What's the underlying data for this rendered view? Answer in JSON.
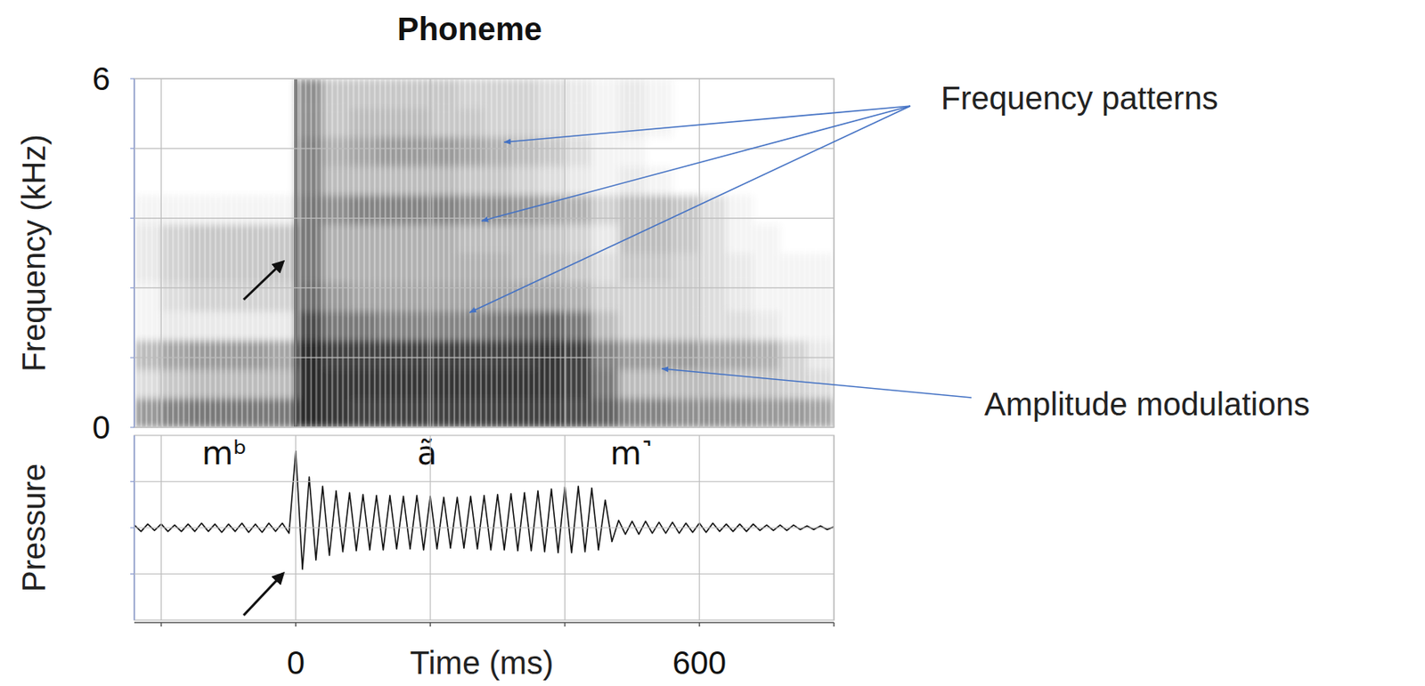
{
  "chart_data": [
    {
      "type": "heatmap",
      "title": "Phoneme",
      "y_label": "Frequency (kHz)",
      "xlim": [
        -240,
        800
      ],
      "ylim": [
        0,
        6
      ],
      "xticks": [
        -200,
        0,
        200,
        400,
        600,
        800
      ],
      "yticks": [
        0,
        {
          "value": 1.2,
          "label": null
        },
        {
          "value": 2.4,
          "label": null
        },
        {
          "value": 3.6,
          "label": null
        },
        {
          "value": 4.8,
          "label": null
        },
        6
      ],
      "grid": true,
      "tick_labels": "y",
      "x_bins": [
        -240,
        -200,
        -160,
        -120,
        -80,
        -40,
        0,
        40,
        80,
        120,
        160,
        200,
        240,
        280,
        320,
        360,
        400,
        440,
        480,
        520,
        560,
        600,
        640,
        680,
        720,
        760,
        800
      ],
      "y_bins": [
        0,
        0.5,
        1,
        1.5,
        2,
        2.5,
        3,
        3.5,
        4,
        4.5,
        5,
        5.5,
        6
      ],
      "zlim": [
        0,
        1
      ],
      "cells": [
        [
          0.45,
          0.55,
          0.6,
          0.6,
          0.6,
          0.6,
          0.95,
          0.9,
          0.85,
          0.85,
          0.85,
          0.85,
          0.85,
          0.85,
          0.85,
          0.85,
          0.8,
          0.7,
          0.55,
          0.55,
          0.5,
          0.5,
          0.5,
          0.45,
          0.45,
          0.4
        ],
        [
          0.15,
          0.25,
          0.3,
          0.3,
          0.3,
          0.3,
          0.95,
          0.9,
          0.9,
          0.9,
          0.9,
          0.9,
          0.9,
          0.9,
          0.9,
          0.9,
          0.85,
          0.6,
          0.3,
          0.3,
          0.3,
          0.3,
          0.25,
          0.25,
          0.2,
          0.15
        ],
        [
          0.3,
          0.4,
          0.45,
          0.45,
          0.45,
          0.4,
          0.95,
          0.85,
          0.85,
          0.85,
          0.85,
          0.85,
          0.85,
          0.85,
          0.85,
          0.9,
          0.85,
          0.55,
          0.45,
          0.45,
          0.45,
          0.4,
          0.4,
          0.35,
          0.2,
          0.1
        ],
        [
          0.05,
          0.1,
          0.1,
          0.1,
          0.1,
          0.1,
          0.8,
          0.6,
          0.6,
          0.55,
          0.55,
          0.55,
          0.55,
          0.6,
          0.65,
          0.7,
          0.6,
          0.3,
          0.2,
          0.2,
          0.2,
          0.15,
          0.15,
          0.1,
          0.05,
          0.05
        ],
        [
          0.05,
          0.15,
          0.2,
          0.2,
          0.2,
          0.2,
          0.65,
          0.45,
          0.4,
          0.4,
          0.4,
          0.4,
          0.4,
          0.4,
          0.4,
          0.4,
          0.35,
          0.2,
          0.2,
          0.2,
          0.2,
          0.15,
          0.1,
          0.05,
          0.05,
          0.05
        ],
        [
          0.1,
          0.2,
          0.25,
          0.25,
          0.25,
          0.25,
          0.6,
          0.35,
          0.35,
          0.35,
          0.35,
          0.35,
          0.35,
          0.35,
          0.3,
          0.3,
          0.25,
          0.15,
          0.25,
          0.25,
          0.2,
          0.15,
          0.1,
          0.05,
          0.05,
          0.05
        ],
        [
          0.1,
          0.2,
          0.25,
          0.25,
          0.25,
          0.25,
          0.6,
          0.35,
          0.35,
          0.35,
          0.35,
          0.35,
          0.3,
          0.3,
          0.3,
          0.25,
          0.2,
          0.1,
          0.3,
          0.3,
          0.25,
          0.15,
          0.05,
          0.05,
          0,
          0
        ],
        [
          0.05,
          0.05,
          0.05,
          0.05,
          0.05,
          0.05,
          0.6,
          0.5,
          0.55,
          0.55,
          0.55,
          0.55,
          0.5,
          0.5,
          0.45,
          0.4,
          0.35,
          0.2,
          0.3,
          0.3,
          0.25,
          0.15,
          0.05,
          0,
          0,
          0
        ],
        [
          0,
          0,
          0,
          0,
          0,
          0,
          0.55,
          0.3,
          0.3,
          0.3,
          0.3,
          0.3,
          0.25,
          0.25,
          0.2,
          0.15,
          0.1,
          0.05,
          0.1,
          0.05,
          0,
          0,
          0,
          0,
          0,
          0
        ],
        [
          0,
          0,
          0,
          0,
          0,
          0,
          0.55,
          0.35,
          0.4,
          0.45,
          0.45,
          0.45,
          0.4,
          0.35,
          0.3,
          0.25,
          0.15,
          0.05,
          0.05,
          0,
          0,
          0,
          0,
          0,
          0,
          0
        ],
        [
          0,
          0,
          0,
          0,
          0,
          0,
          0.5,
          0.25,
          0.3,
          0.3,
          0.3,
          0.25,
          0.25,
          0.2,
          0.2,
          0.15,
          0.1,
          0.05,
          0.1,
          0.05,
          0,
          0,
          0,
          0,
          0,
          0
        ],
        [
          0,
          0,
          0,
          0,
          0,
          0,
          0.5,
          0.25,
          0.25,
          0.25,
          0.25,
          0.25,
          0.2,
          0.2,
          0.2,
          0.15,
          0.1,
          0.05,
          0.1,
          0.05,
          0,
          0,
          0,
          0,
          0,
          0
        ]
      ],
      "release": 0,
      "annotations": [
        {
          "text": "Frequency patterns"
        },
        {
          "text": "Amplitude modulations"
        }
      ]
    },
    {
      "type": "line",
      "y_label": "Pressure",
      "x_label": "Time (ms)",
      "xlim": [
        -240,
        800
      ],
      "ylim": [
        -1,
        1
      ],
      "xticks": [
        {
          "value": -200,
          "label": null
        },
        0,
        {
          "value": 200,
          "label": null
        },
        {
          "value": 400,
          "label": null
        },
        600,
        {
          "value": 800,
          "label": null
        }
      ],
      "yticks": [
        -0.5,
        0,
        0.5
      ],
      "grid": true,
      "tick_labels": "x",
      "color": "#111111",
      "phoneme_labels": [
        "mᵇ",
        "ã",
        "m˺"
      ],
      "x": [
        -240,
        -230,
        -220,
        -210,
        -200,
        -190,
        -180,
        -170,
        -160,
        -150,
        -140,
        -130,
        -120,
        -110,
        -100,
        -90,
        -80,
        -70,
        -60,
        -50,
        -40,
        -30,
        -20,
        -10,
        0,
        10,
        20,
        30,
        40,
        50,
        60,
        70,
        80,
        90,
        100,
        110,
        120,
        130,
        140,
        150,
        160,
        170,
        180,
        190,
        200,
        210,
        220,
        230,
        240,
        250,
        260,
        270,
        280,
        290,
        300,
        310,
        320,
        330,
        340,
        350,
        360,
        370,
        380,
        390,
        400,
        410,
        420,
        430,
        440,
        450,
        460,
        470,
        480,
        490,
        500,
        510,
        520,
        530,
        540,
        550,
        560,
        570,
        580,
        590,
        600,
        610,
        620,
        630,
        640,
        650,
        660,
        670,
        680,
        690,
        700,
        710,
        720,
        730,
        740,
        750,
        760,
        770,
        780,
        790,
        800
      ],
      "values": [
        0.03,
        -0.04,
        0.04,
        -0.03,
        0.04,
        -0.04,
        0.03,
        -0.04,
        0.04,
        -0.04,
        0.05,
        -0.04,
        0.04,
        -0.05,
        0.04,
        -0.04,
        0.05,
        -0.05,
        0.04,
        -0.05,
        0.05,
        -0.04,
        0.05,
        -0.06,
        0.83,
        -0.45,
        0.55,
        -0.35,
        0.45,
        -0.3,
        0.4,
        -0.26,
        0.38,
        -0.25,
        0.36,
        -0.24,
        0.35,
        -0.24,
        0.35,
        -0.23,
        0.34,
        -0.23,
        0.35,
        -0.24,
        0.34,
        -0.23,
        0.33,
        -0.22,
        0.33,
        -0.22,
        0.34,
        -0.23,
        0.35,
        -0.24,
        0.36,
        -0.24,
        0.37,
        -0.25,
        0.38,
        -0.25,
        0.4,
        -0.26,
        0.42,
        -0.27,
        0.44,
        -0.27,
        0.45,
        -0.26,
        0.43,
        -0.24,
        0.3,
        -0.15,
        0.08,
        -0.07,
        0.07,
        -0.07,
        0.07,
        -0.06,
        0.06,
        -0.06,
        0.06,
        -0.06,
        0.05,
        -0.05,
        0.05,
        -0.05,
        0.05,
        -0.04,
        0.04,
        -0.04,
        0.04,
        -0.04,
        0.04,
        -0.03,
        0.03,
        -0.03,
        0.03,
        -0.03,
        0.03,
        -0.02,
        0.02,
        -0.02,
        0.02,
        -0.02,
        0.01
      ]
    }
  ]
}
